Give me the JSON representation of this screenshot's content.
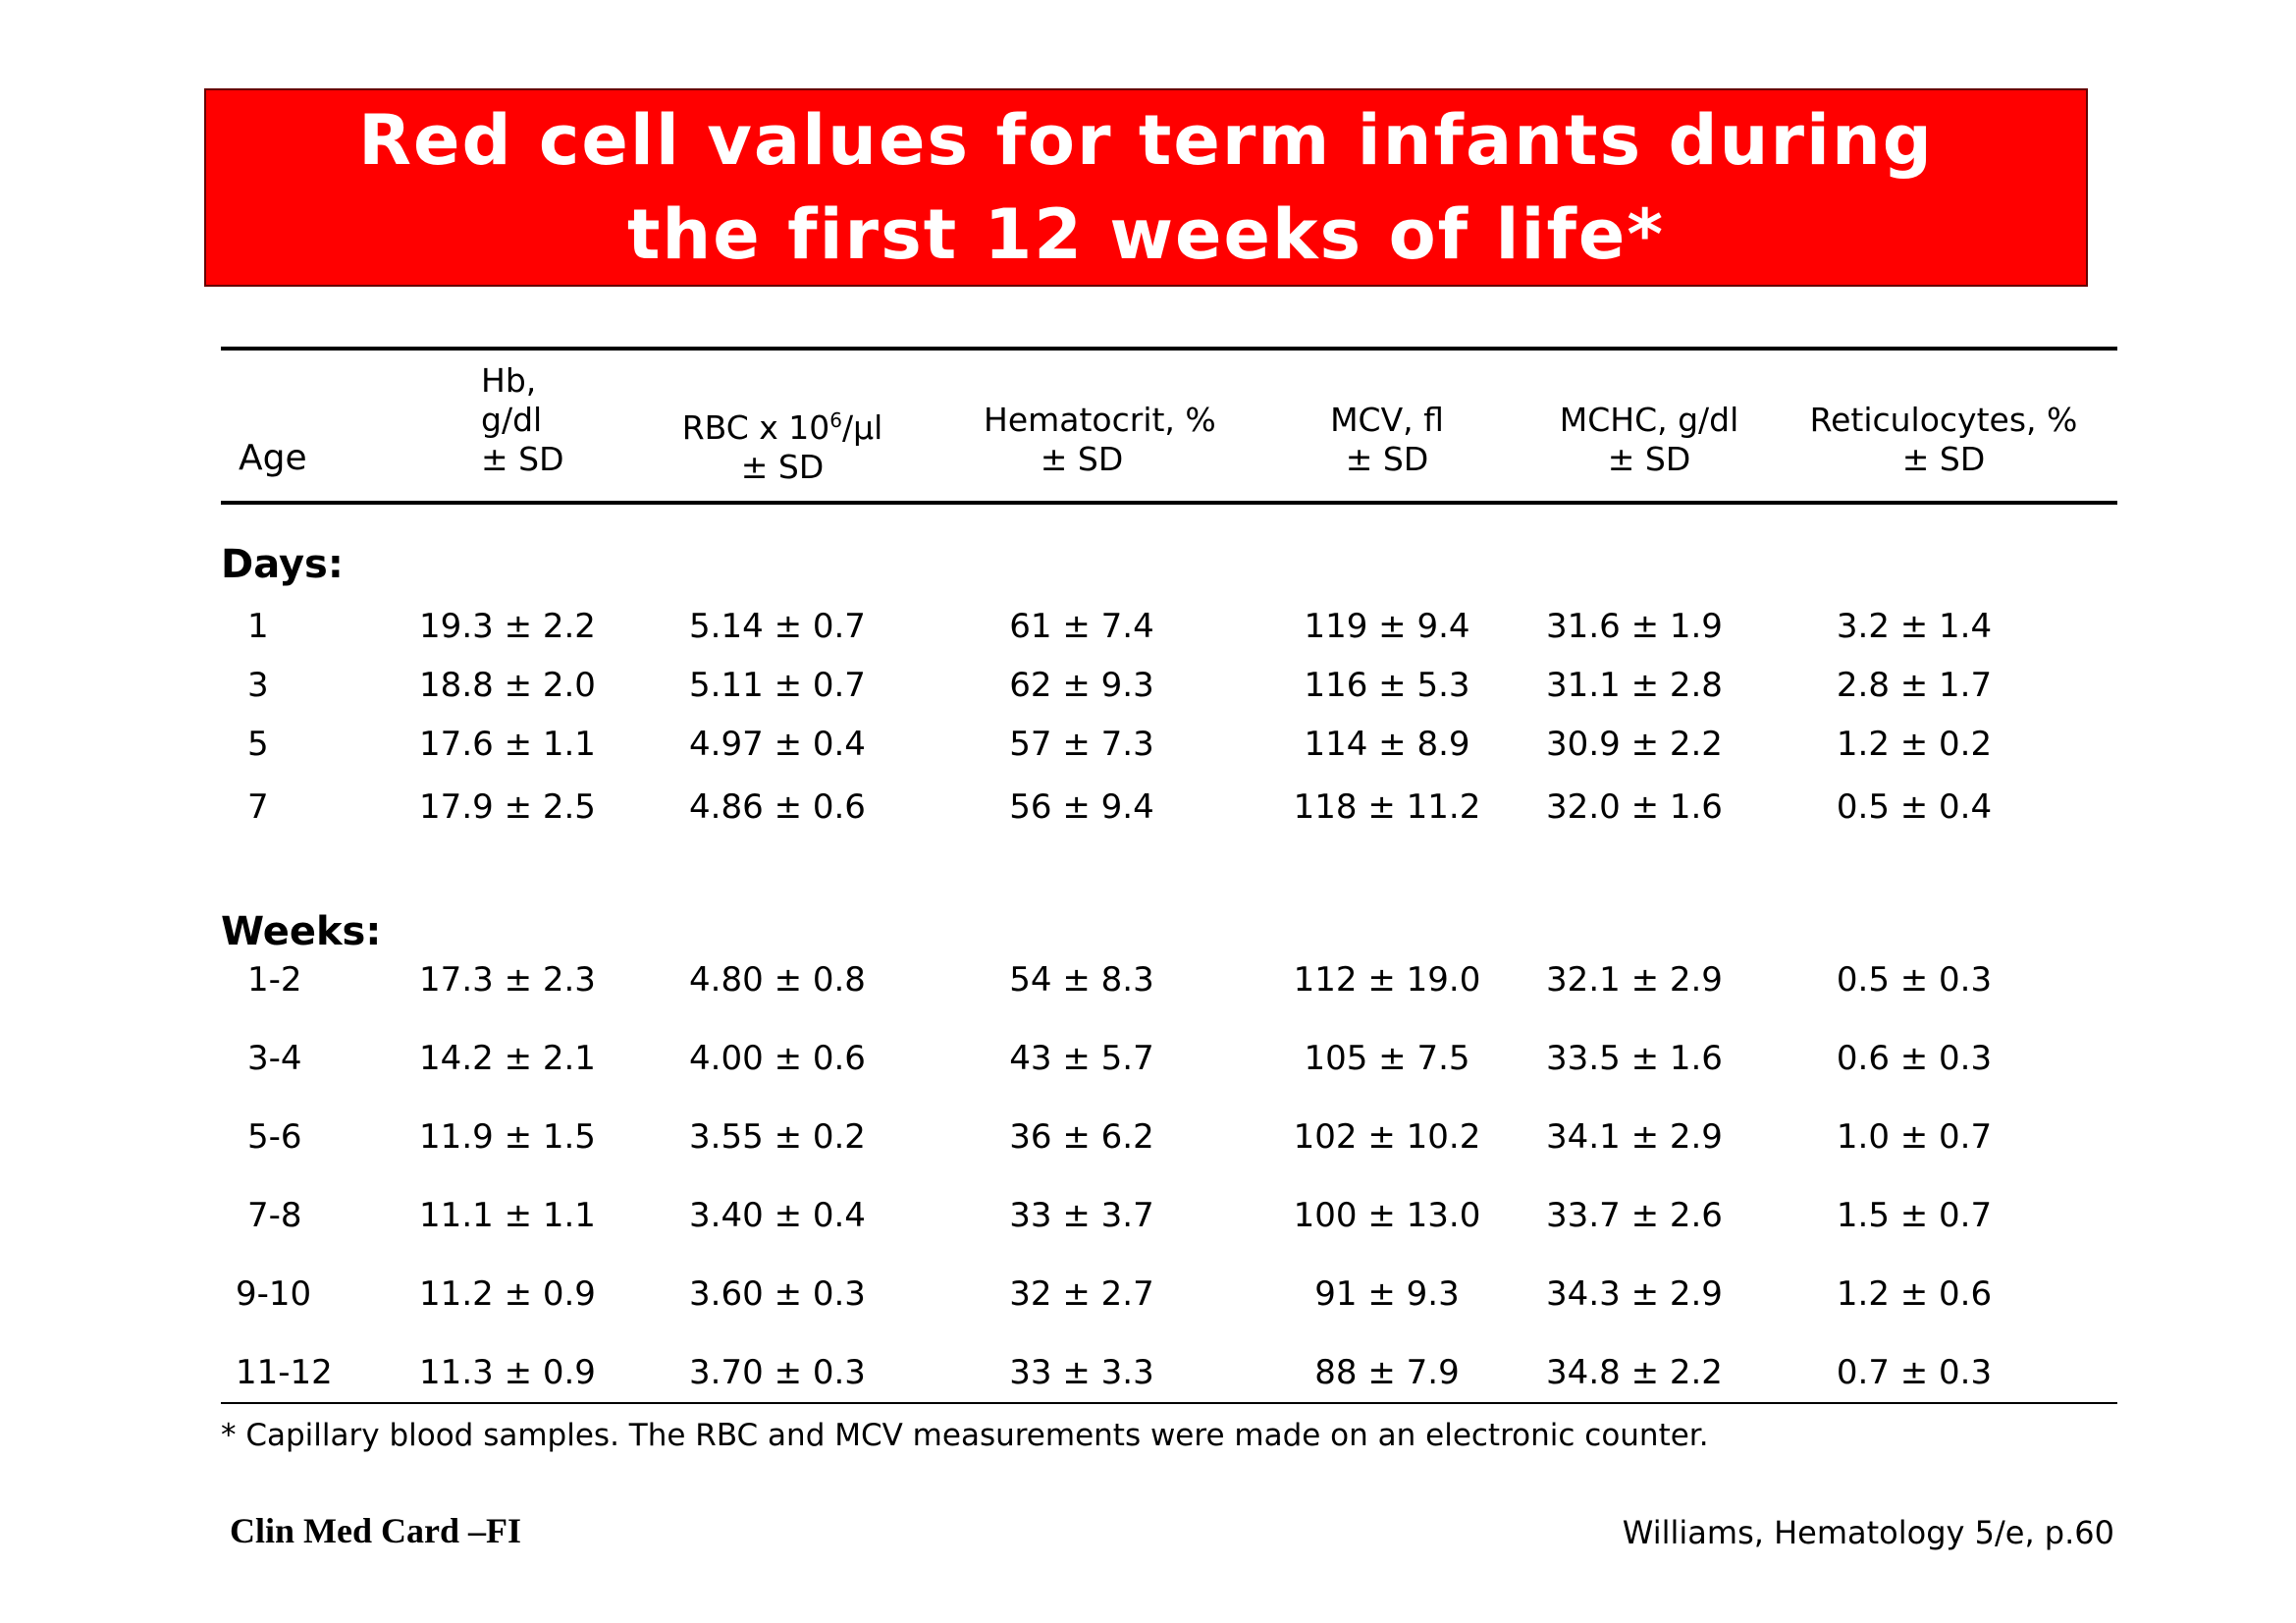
{
  "title": {
    "line1": "Red cell values for term infants during",
    "line2": "the first 12 weeks of life*"
  },
  "table": {
    "headers": {
      "age": "Age",
      "hb": [
        "Hb,",
        "g/dl",
        "± SD"
      ],
      "rbc": [
        "RBC x 10",
        "6",
        "/µl",
        "± SD"
      ],
      "hct": [
        "Hematocrit, %",
        "± SD"
      ],
      "mcv": [
        "MCV, fl",
        "± SD"
      ],
      "mchc": [
        "MCHC, g/dl",
        "± SD"
      ],
      "retic": [
        "Reticulocytes, %",
        "± SD"
      ]
    },
    "days_label": "Days:",
    "days": [
      [
        "1",
        "19.3 ± 2.2",
        "5.14 ± 0.7",
        "61 ± 7.4",
        "119 ± 9.4",
        "31.6 ± 1.9",
        "3.2 ± 1.4"
      ],
      [
        "3",
        "18.8 ± 2.0",
        "5.11 ± 0.7",
        "62 ± 9.3",
        "116 ± 5.3",
        "31.1 ± 2.8",
        "2.8 ± 1.7"
      ],
      [
        "5",
        "17.6 ± 1.1",
        "4.97 ± 0.4",
        "57 ± 7.3",
        "114 ± 8.9",
        "30.9 ± 2.2",
        "1.2 ± 0.2"
      ],
      [
        "7",
        "17.9 ± 2.5",
        "4.86 ± 0.6",
        "56 ± 9.4",
        "118 ± 11.2",
        "32.0 ± 1.6",
        "0.5 ± 0.4"
      ]
    ],
    "weeks_label": "Weeks:",
    "weeks": [
      [
        "1-2",
        "17.3 ± 2.3",
        "4.80 ± 0.8",
        "54 ± 8.3",
        "112 ± 19.0",
        "32.1 ± 2.9",
        "0.5 ± 0.3"
      ],
      [
        "3-4",
        "14.2 ± 2.1",
        "4.00 ± 0.6",
        "43 ± 5.7",
        "105 ± 7.5",
        "33.5 ± 1.6",
        "0.6 ± 0.3"
      ],
      [
        "5-6",
        "11.9 ± 1.5",
        "3.55 ± 0.2",
        "36 ± 6.2",
        "102 ± 10.2",
        "34.1 ± 2.9",
        "1.0 ± 0.7"
      ],
      [
        "7-8",
        "11.1 ± 1.1",
        "3.40 ± 0.4",
        "33 ± 3.7",
        "100 ± 13.0",
        "33.7 ± 2.6",
        "1.5 ± 0.7"
      ],
      [
        "9-10",
        "11.2 ± 0.9",
        "3.60 ± 0.3",
        "32 ± 2.7",
        "91 ± 9.3",
        "34.3 ± 2.9",
        "1.2 ± 0.6"
      ],
      [
        "11-12",
        "11.3 ± 0.9",
        "3.70 ± 0.3",
        "33 ± 3.3",
        "88 ± 7.9",
        "34.8 ± 2.2",
        "0.7 ± 0.3"
      ]
    ]
  },
  "footnote": "* Capillary blood samples. The RBC and MCV measurements were made on an electronic counter.",
  "footer": {
    "left": "Clin Med Card –FI",
    "right": "Williams, Hematology 5/e, p.60"
  },
  "colors": {
    "title_bg": "#ff0000",
    "title_text": "#ffffff"
  }
}
